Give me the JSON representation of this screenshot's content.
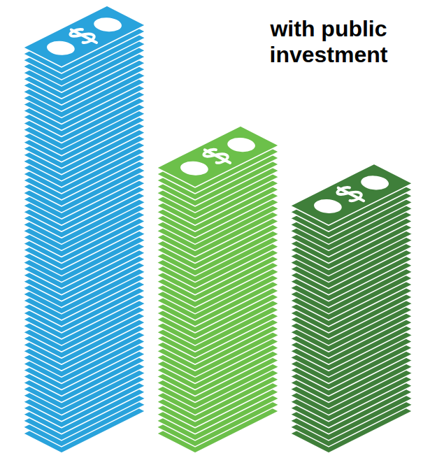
{
  "chart_data": {
    "type": "bar",
    "title": "with public investment",
    "categories": [
      null,
      null,
      null
    ],
    "values": [
      62,
      43,
      37
    ],
    "colors": [
      "#29a3dc",
      "#6cc04a",
      "#3f7f3a"
    ],
    "ylim": [
      0,
      62
    ],
    "tick_labels": false,
    "grid": false
  }
}
